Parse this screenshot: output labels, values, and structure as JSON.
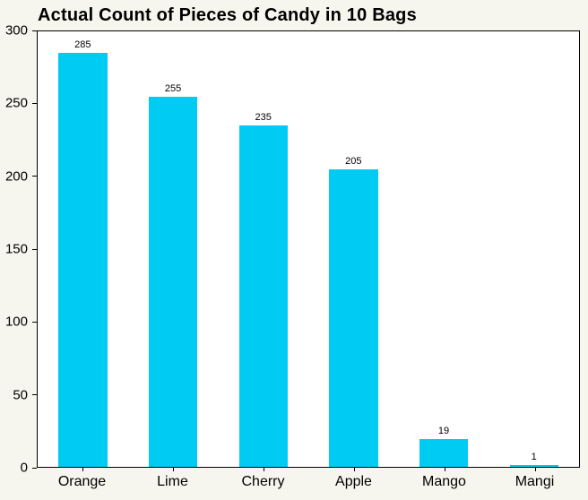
{
  "chart_data": {
    "type": "bar",
    "title": "Actual Count of Pieces of Candy in 10 Bags",
    "categories": [
      "Orange",
      "Lime",
      "Cherry",
      "Apple",
      "Mango",
      "Mangi"
    ],
    "values": [
      285,
      255,
      235,
      205,
      19,
      1
    ],
    "data_labels": [
      "285",
      "255",
      "235",
      "205",
      "19",
      "1"
    ],
    "xlabel": "",
    "ylabel": "",
    "ylim": [
      0,
      300
    ],
    "yticks": [
      0,
      50,
      100,
      150,
      200,
      250,
      300
    ],
    "grid": false,
    "legend_position": "none",
    "bar_color": "#00cbf2",
    "plot_background": "#ffffff",
    "page_background": "#f7f6ee",
    "axis_color": "#000000"
  }
}
